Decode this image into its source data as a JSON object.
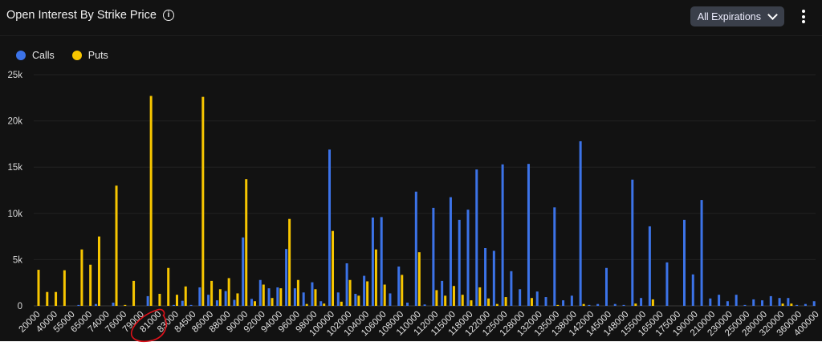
{
  "header": {
    "title": "Open Interest By Strike Price",
    "info_icon": "info-circle-icon",
    "dropdown_label": "All Expirations",
    "menu_icon": "kebab-vertical-icon"
  },
  "colors": {
    "calls": "#3c73e8",
    "puts": "#f7c600",
    "annotation": "#e0121b"
  },
  "chart_data": {
    "type": "bar",
    "title": "Open Interest By Strike Price",
    "legend": {
      "placement": "top-left",
      "entries": [
        "Calls",
        "Puts"
      ]
    },
    "grid": true,
    "ylim": [
      0,
      25000
    ],
    "yticks": [
      "0",
      "5k",
      "10k",
      "15k",
      "20k",
      "25k"
    ],
    "categories": [
      "20000",
      "",
      "40000",
      "",
      "55000",
      "",
      "65000",
      "",
      "74000",
      "",
      "76000",
      "",
      "79000",
      "",
      "81000",
      "",
      "83000",
      "",
      "84500",
      "",
      "86000",
      "",
      "88000",
      "",
      "90000",
      "",
      "92000",
      "",
      "94000",
      "",
      "96000",
      "",
      "98000",
      "",
      "100000",
      "",
      "102000",
      "",
      "104000",
      "",
      "106000",
      "",
      "108000",
      "",
      "110000",
      "",
      "112000",
      "",
      "115000",
      "",
      "118000",
      "",
      "122000",
      "",
      "125000",
      "",
      "128000",
      "",
      "132000",
      "",
      "135000",
      "",
      "138000",
      "",
      "142000",
      "",
      "145000",
      "",
      "148000",
      "",
      "155000",
      "",
      "165000",
      "",
      "175000",
      "",
      "190000",
      "",
      "210000",
      "",
      "230000",
      "",
      "250000",
      "",
      "280000",
      "",
      "320000",
      "",
      "360000",
      "",
      "400000"
    ],
    "series": [
      {
        "name": "Calls",
        "values": [
          0,
          0,
          0,
          0,
          0,
          100,
          0,
          200,
          0,
          350,
          0,
          0,
          0,
          1050,
          0,
          0,
          100,
          550,
          100,
          2000,
          1200,
          600,
          1600,
          650,
          7400,
          750,
          2800,
          1900,
          2000,
          6150,
          1900,
          1450,
          2550,
          500,
          16900,
          1450,
          4600,
          1300,
          3250,
          9550,
          9600,
          1350,
          4250,
          350,
          12350,
          150,
          10600,
          2700,
          11750,
          9300,
          10400,
          14750,
          6250,
          5950,
          15300,
          3750,
          1800,
          15350,
          1550,
          950,
          10650,
          600,
          1100,
          17800,
          100,
          200,
          4100,
          200,
          100,
          13650,
          850,
          8600,
          0,
          4700,
          0,
          9300,
          3400,
          11450,
          800,
          1200,
          500,
          1200,
          100,
          700,
          600,
          1050,
          850,
          850,
          100,
          200,
          500
        ]
      },
      {
        "name": "Puts",
        "values": [
          3900,
          1500,
          1500,
          3850,
          0,
          6100,
          4450,
          7500,
          0,
          13000,
          100,
          2700,
          0,
          22700,
          1300,
          4100,
          1200,
          2100,
          0,
          22600,
          2700,
          1800,
          3000,
          1350,
          13700,
          500,
          2300,
          850,
          1900,
          9400,
          2800,
          200,
          1800,
          250,
          8100,
          450,
          2800,
          1100,
          2650,
          6100,
          2300,
          0,
          3350,
          0,
          5800,
          0,
          1700,
          1100,
          2150,
          1200,
          600,
          2000,
          800,
          200,
          950,
          0,
          0,
          850,
          0,
          0,
          100,
          0,
          0,
          200,
          0,
          0,
          0,
          0,
          0,
          250,
          0,
          700,
          0,
          0,
          0,
          0,
          0,
          0,
          0,
          0,
          0,
          0,
          0,
          0,
          0,
          0,
          250,
          250,
          0,
          0,
          0
        ]
      }
    ]
  }
}
